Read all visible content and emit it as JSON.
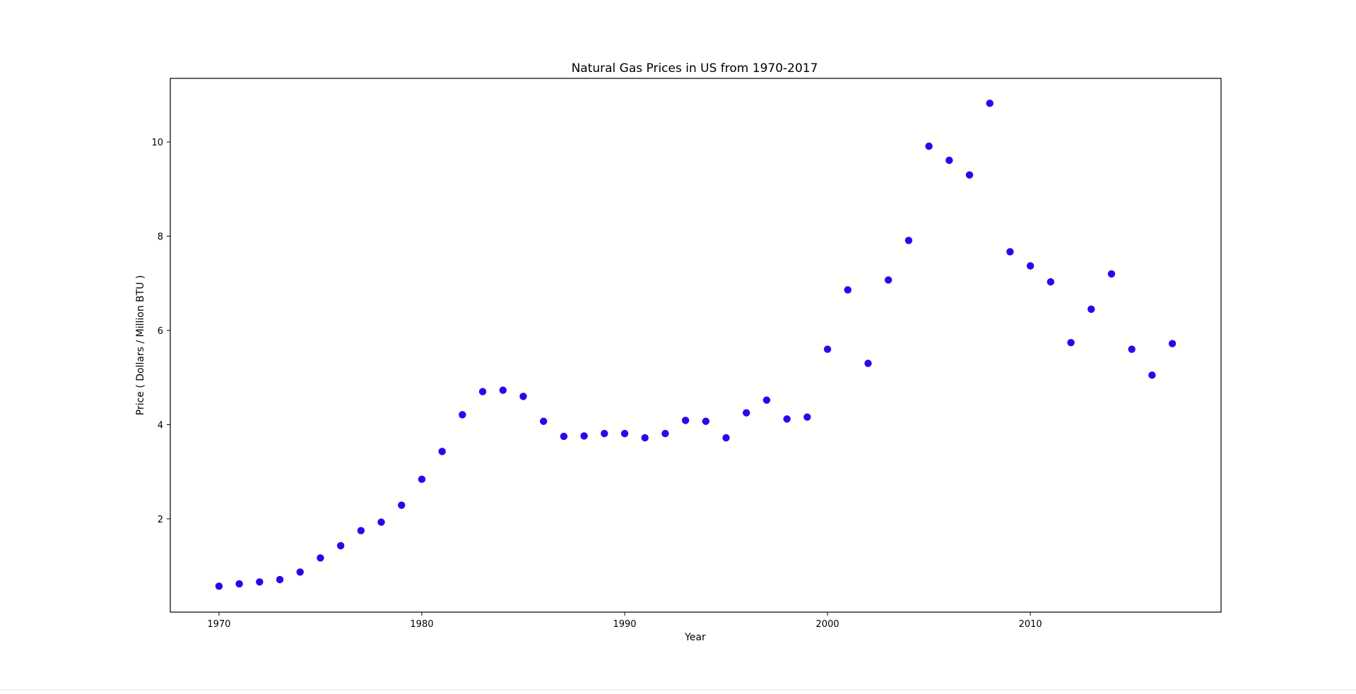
{
  "chart_data": {
    "type": "scatter",
    "title": "Natural Gas Prices in US from 1970-2017",
    "xlabel": "Year",
    "ylabel": "Price ( Dollars / Million BTU )",
    "xlim": [
      1967.6,
      2019.4
    ],
    "ylim": [
      0.02,
      11.35
    ],
    "x_ticks": [
      1970,
      1980,
      1990,
      2000,
      2010
    ],
    "y_ticks": [
      2,
      4,
      6,
      8,
      10
    ],
    "marker_color": "#3300ee",
    "grid": false,
    "legend": "none",
    "x": [
      1970,
      1971,
      1972,
      1973,
      1974,
      1975,
      1976,
      1977,
      1978,
      1979,
      1980,
      1981,
      1982,
      1983,
      1984,
      1985,
      1986,
      1987,
      1988,
      1989,
      1990,
      1991,
      1992,
      1993,
      1994,
      1995,
      1996,
      1997,
      1998,
      1999,
      2000,
      2001,
      2002,
      2003,
      2004,
      2005,
      2006,
      2007,
      2008,
      2009,
      2010,
      2011,
      2012,
      2013,
      2014,
      2015,
      2016,
      2017
    ],
    "y": [
      0.57,
      0.62,
      0.66,
      0.71,
      0.87,
      1.17,
      1.43,
      1.75,
      1.93,
      2.29,
      2.84,
      3.43,
      4.21,
      4.7,
      4.73,
      4.6,
      4.07,
      3.75,
      3.76,
      3.81,
      3.81,
      3.72,
      3.81,
      4.09,
      4.07,
      3.72,
      4.25,
      4.52,
      4.12,
      4.16,
      5.6,
      6.86,
      5.3,
      7.07,
      7.91,
      9.91,
      9.61,
      9.3,
      10.82,
      7.67,
      7.37,
      7.03,
      5.74,
      6.45,
      7.2,
      5.6,
      5.05,
      5.72
    ]
  }
}
